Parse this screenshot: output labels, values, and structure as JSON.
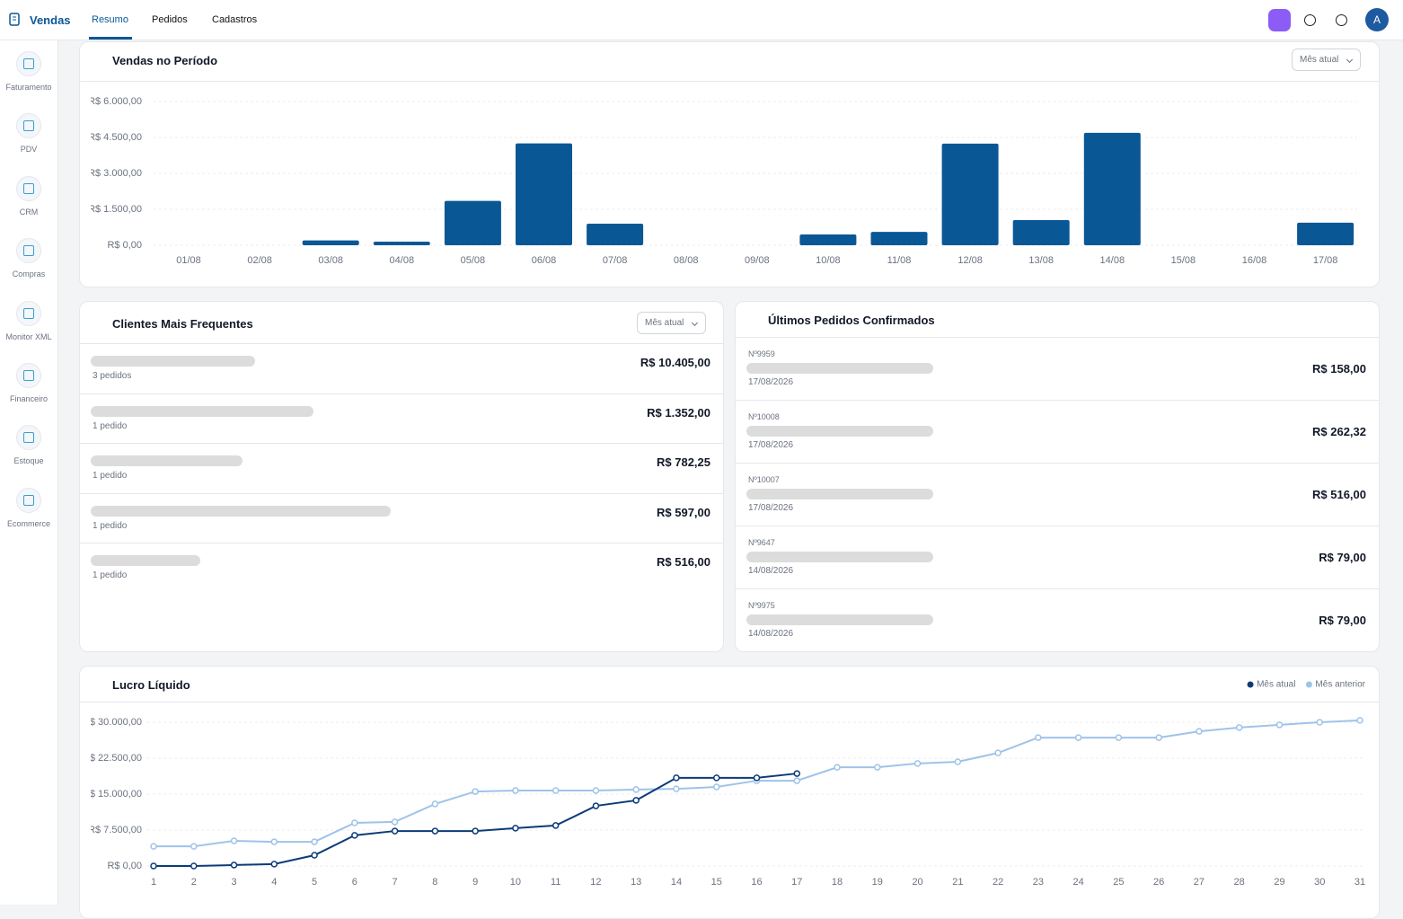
{
  "header": {
    "app": "Vendas",
    "tabs": [
      "Resumo",
      "Pedidos",
      "Cadastros"
    ],
    "avatar": "A"
  },
  "sidebar": [
    "Faturamento",
    "PDV",
    "CRM",
    "Compras",
    "Monitor XML",
    "Financeiro",
    "Estoque",
    "Ecommerce"
  ],
  "chart_data": [
    {
      "type": "bar",
      "title": "Vendas no Período",
      "filter": "Mês atual",
      "color": "#0a5796",
      "grid": true,
      "categories": [
        "01/08",
        "02/08",
        "03/08",
        "04/08",
        "05/08",
        "06/08",
        "07/08",
        "08/08",
        "09/08",
        "10/08",
        "11/08",
        "12/08",
        "13/08",
        "14/08",
        "15/08",
        "16/08",
        "17/08"
      ],
      "values": [
        0,
        0,
        200,
        150,
        1850,
        4250,
        900,
        0,
        0,
        450,
        560,
        4240,
        1050,
        4690,
        0,
        0,
        940
      ],
      "ylim": [
        0,
        6000
      ],
      "yticks": [
        {
          "value": 0,
          "label": "R$ 0,00"
        },
        {
          "value": 1500,
          "label": "R$ 1.500,00"
        },
        {
          "value": 3000,
          "label": "R$ 3.000,00"
        },
        {
          "value": 4500,
          "label": "R$ 4.500,00"
        },
        {
          "value": 6000,
          "label": "R$ 6.000,00"
        }
      ]
    },
    {
      "type": "line",
      "title": "Lucro Líquido",
      "grid": true,
      "legend": "top-right",
      "x": [
        1,
        2,
        3,
        4,
        5,
        6,
        7,
        8,
        9,
        10,
        11,
        12,
        13,
        14,
        15,
        16,
        17,
        18,
        19,
        20,
        21,
        22,
        23,
        24,
        25,
        26,
        27,
        28,
        29,
        30,
        31
      ],
      "xlim": [
        1,
        31
      ],
      "xticks": [
        1,
        2,
        3,
        4,
        5,
        6,
        7,
        8,
        9,
        10,
        11,
        12,
        13,
        14,
        15,
        16,
        17,
        18,
        19,
        20,
        21,
        22,
        23,
        24,
        25,
        26,
        27,
        28,
        29,
        30,
        31
      ],
      "ylim": [
        0,
        30000
      ],
      "yticks": [
        {
          "value": 0,
          "label": "R$ 0,00"
        },
        {
          "value": 7500,
          "label": "R$ 7.500,00"
        },
        {
          "value": 15000,
          "label": "R$ 15.000,00"
        },
        {
          "value": 22500,
          "label": "R$ 22.500,00"
        },
        {
          "value": 30000,
          "label": "R$ 30.000,00"
        }
      ],
      "series": [
        {
          "name": "Mês atual",
          "color": "#0d3b78",
          "values": [
            0,
            0,
            200,
            400,
            2250,
            6400,
            7300,
            7300,
            7300,
            7900,
            8450,
            12550,
            13700,
            18400,
            18400,
            18400,
            19300,
            null,
            null,
            null,
            null,
            null,
            null,
            null,
            null,
            null,
            null,
            null,
            null,
            null,
            null
          ]
        },
        {
          "name": "Mês anterior",
          "color": "#9fc3e9",
          "values": [
            4100,
            4100,
            5250,
            5050,
            5050,
            9000,
            9200,
            12950,
            15550,
            15750,
            15750,
            15750,
            15950,
            16100,
            16500,
            17800,
            17800,
            20600,
            20600,
            21400,
            21750,
            23600,
            26800,
            26800,
            26800,
            26800,
            28100,
            28900,
            29450,
            30000,
            30400
          ]
        }
      ]
    }
  ],
  "clients": {
    "title": "Clientes Mais Frequentes",
    "filter": "Mês atual",
    "rows": [
      {
        "orders": "3 pedidos",
        "value": "R$ 10.405,00"
      },
      {
        "orders": "1 pedido",
        "value": "R$ 1.352,00"
      },
      {
        "orders": "1 pedido",
        "value": "R$ 782,25"
      },
      {
        "orders": "1 pedido",
        "value": "R$ 597,00"
      },
      {
        "orders": "1 pedido",
        "value": "R$ 516,00"
      }
    ]
  },
  "orders": {
    "title": "Últimos Pedidos Confirmados",
    "rows": [
      {
        "number": "Nº9959",
        "date": "17/08/2026",
        "value": "R$ 158,00"
      },
      {
        "number": "Nº10008",
        "date": "17/08/2026",
        "value": "R$ 262,32"
      },
      {
        "number": "Nº10007",
        "date": "17/08/2026",
        "value": "R$ 516,00"
      },
      {
        "number": "Nº9647",
        "date": "14/08/2026",
        "value": "R$ 79,00"
      },
      {
        "number": "Nº9975",
        "date": "14/08/2026",
        "value": "R$ 79,00"
      }
    ]
  }
}
